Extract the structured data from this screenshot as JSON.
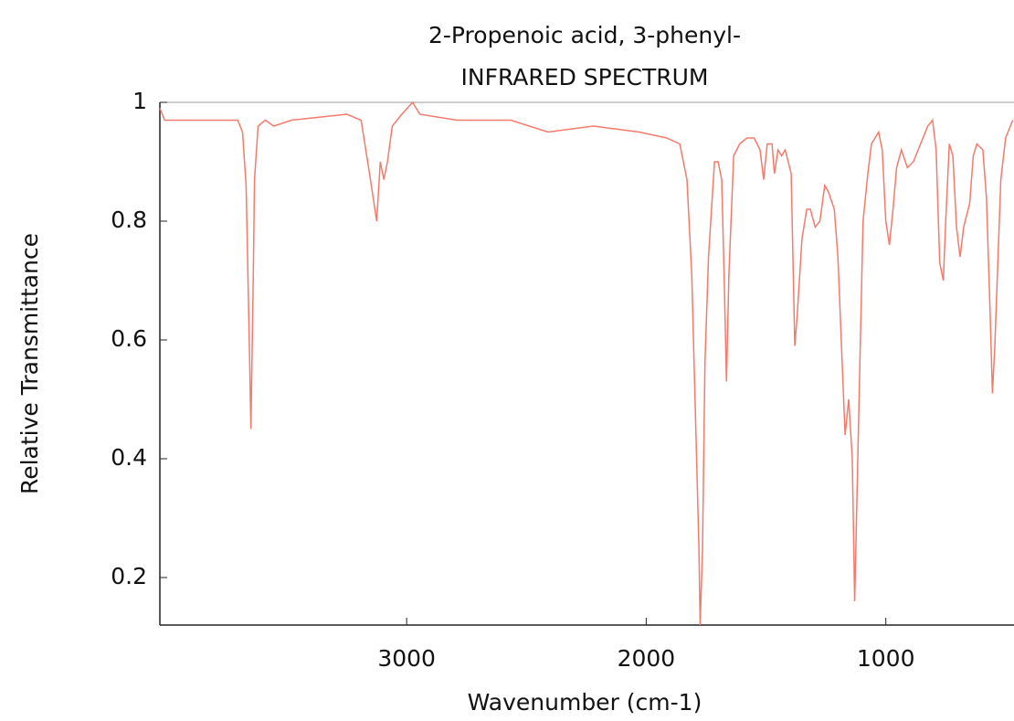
{
  "chart_data": {
    "type": "line",
    "title": "2-Propenoic acid, 3-phenyl-",
    "subtitle": "INFRARED SPECTRUM",
    "x_label": "Wavenumber (cm-1)",
    "y_label": "Relative Transmittance",
    "xlim": [
      4030,
      465
    ],
    "ylim": [
      0.12,
      1
    ],
    "xticks": [
      3000,
      2000,
      1000
    ],
    "yticks": [
      0.2,
      0.4,
      0.6,
      0.8,
      1
    ],
    "grid": false,
    "series": [
      {
        "name": "2-Propenoic acid, 3-phenyl-",
        "color": "#f47a6c",
        "x": [
          4030,
          4010,
          3705,
          3685,
          3670,
          3655,
          3650,
          3640,
          3635,
          3620,
          3590,
          3555,
          3480,
          3250,
          3190,
          3155,
          3125,
          3110,
          3095,
          3080,
          3060,
          3020,
          2975,
          2945,
          2790,
          2565,
          2410,
          2220,
          2030,
          1915,
          1860,
          1830,
          1810,
          1795,
          1780,
          1775,
          1765,
          1755,
          1740,
          1715,
          1700,
          1685,
          1675,
          1665,
          1655,
          1635,
          1610,
          1580,
          1550,
          1525,
          1510,
          1495,
          1475,
          1465,
          1450,
          1435,
          1420,
          1395,
          1380,
          1370,
          1350,
          1330,
          1315,
          1295,
          1275,
          1255,
          1240,
          1215,
          1200,
          1185,
          1170,
          1155,
          1140,
          1130,
          1125,
          1110,
          1095,
          1075,
          1060,
          1030,
          1015,
          1000,
          985,
          970,
          955,
          935,
          910,
          885,
          855,
          825,
          805,
          790,
          775,
          760,
          750,
          735,
          720,
          705,
          690,
          675,
          650,
          635,
          620,
          595,
          580,
          565,
          555,
          545,
          520,
          500,
          470
        ],
        "values": [
          0.99,
          0.97,
          0.97,
          0.95,
          0.86,
          0.56,
          0.45,
          0.71,
          0.87,
          0.96,
          0.97,
          0.96,
          0.97,
          0.98,
          0.97,
          0.88,
          0.8,
          0.9,
          0.87,
          0.9,
          0.96,
          0.98,
          1.0,
          0.98,
          0.97,
          0.97,
          0.95,
          0.96,
          0.95,
          0.94,
          0.93,
          0.87,
          0.71,
          0.48,
          0.25,
          0.12,
          0.25,
          0.56,
          0.74,
          0.9,
          0.9,
          0.87,
          0.71,
          0.53,
          0.71,
          0.91,
          0.93,
          0.94,
          0.94,
          0.92,
          0.87,
          0.93,
          0.93,
          0.88,
          0.92,
          0.91,
          0.92,
          0.88,
          0.59,
          0.64,
          0.77,
          0.82,
          0.82,
          0.79,
          0.8,
          0.86,
          0.85,
          0.82,
          0.74,
          0.59,
          0.44,
          0.5,
          0.4,
          0.16,
          0.25,
          0.53,
          0.8,
          0.88,
          0.93,
          0.95,
          0.92,
          0.8,
          0.76,
          0.82,
          0.89,
          0.92,
          0.89,
          0.9,
          0.93,
          0.96,
          0.97,
          0.92,
          0.73,
          0.7,
          0.8,
          0.93,
          0.91,
          0.79,
          0.74,
          0.79,
          0.83,
          0.91,
          0.93,
          0.92,
          0.84,
          0.65,
          0.51,
          0.59,
          0.87,
          0.94,
          0.97
        ]
      }
    ]
  }
}
